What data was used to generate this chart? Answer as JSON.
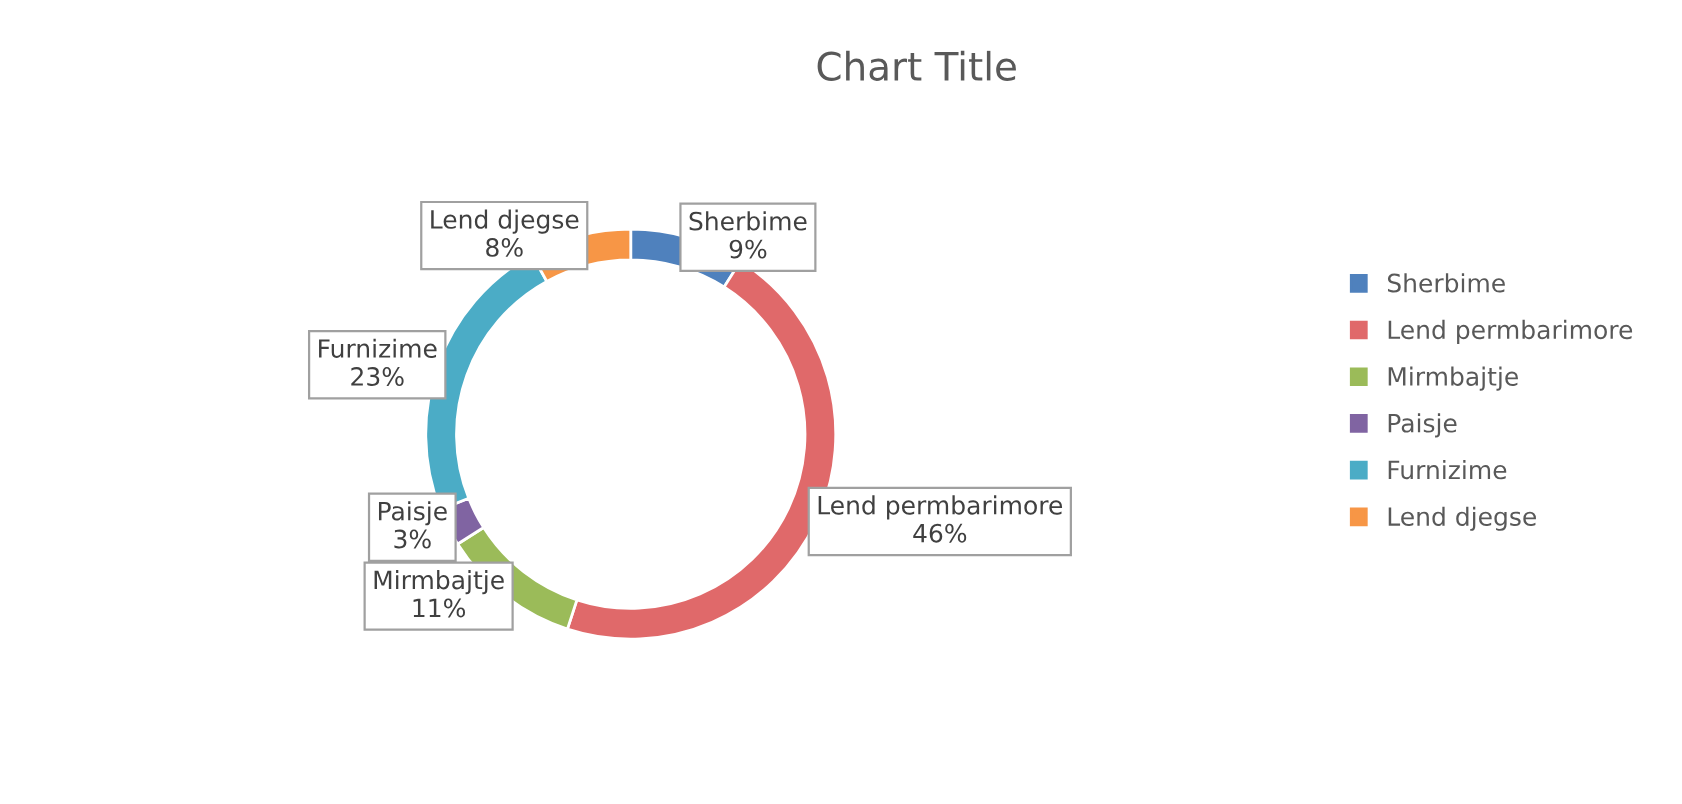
{
  "chart_data": {
    "type": "donut",
    "title": "Chart Title",
    "categories": [
      "Sherbime",
      "Lend permbarimore",
      "Mirmbajtje",
      "Paisje",
      "Furnizime",
      "Lend djegse"
    ],
    "values": [
      9,
      46,
      11,
      3,
      23,
      8
    ],
    "colors": [
      "#4f81bd",
      "#e0696a",
      "#9bbb59",
      "#8064a2",
      "#4bacc6",
      "#f79646"
    ],
    "value_labels": [
      "9%",
      "46%",
      "11%",
      "3%",
      "23%",
      "8%"
    ],
    "legend": "right"
  }
}
